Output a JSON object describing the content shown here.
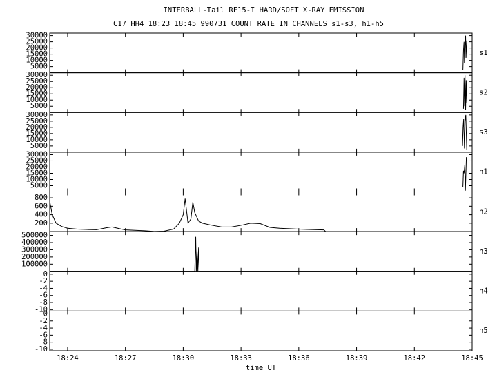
{
  "title": "INTERBALL-Tail RF15-I HARD/SOFT X-RAY EMISSION",
  "subtitle": "C17 HH4 18:23 18:45 990731  COUNT RATE IN CHANNELS s1-s3, h1-h5",
  "x_label": "time UT",
  "xlim": [
    23.07,
    45
  ],
  "xticks": [
    {
      "value": 24,
      "label": "18:24"
    },
    {
      "value": 27,
      "label": "18:27"
    },
    {
      "value": 30,
      "label": "18:30"
    },
    {
      "value": 33,
      "label": "18:33"
    },
    {
      "value": 36,
      "label": "18:36"
    },
    {
      "value": 39,
      "label": "18:39"
    },
    {
      "value": 42,
      "label": "18:42"
    },
    {
      "value": 45,
      "label": "18:45"
    }
  ],
  "chart_data": [
    {
      "type": "line",
      "label": "s1",
      "color": "#000000",
      "ylim": [
        0,
        32000
      ],
      "yticks": [
        5000,
        10000,
        15000,
        20000,
        25000,
        30000
      ],
      "x": [
        44.52,
        44.55,
        44.58,
        44.6,
        44.63,
        44.66,
        44.68,
        44.72
      ],
      "values": [
        2000,
        18000,
        25000,
        8000,
        22000,
        30000,
        12000,
        26000
      ]
    },
    {
      "type": "line",
      "label": "s2",
      "color": "#000000",
      "ylim": [
        0,
        32000
      ],
      "yticks": [
        5000,
        10000,
        15000,
        20000,
        25000,
        30000
      ],
      "x": [
        44.55,
        44.58,
        44.61,
        44.63,
        44.66,
        44.69,
        44.72
      ],
      "values": [
        3000,
        28000,
        5000,
        30000,
        2000,
        26000,
        8000
      ]
    },
    {
      "type": "line",
      "label": "s3",
      "color": "#000000",
      "ylim": [
        0,
        32000
      ],
      "yticks": [
        5000,
        10000,
        15000,
        20000,
        25000,
        30000
      ],
      "x": [
        44.5,
        44.53,
        44.56,
        44.6,
        44.63,
        44.67,
        44.72
      ],
      "values": [
        5000,
        20000,
        27000,
        3000,
        25000,
        30000,
        2000
      ]
    },
    {
      "type": "line",
      "label": "h1",
      "color": "#000000",
      "ylim": [
        0,
        32000
      ],
      "yticks": [
        5000,
        10000,
        15000,
        20000,
        25000,
        30000
      ],
      "x": [
        44.52,
        44.55,
        44.58,
        44.62,
        44.65,
        44.7
      ],
      "values": [
        4000,
        17000,
        15000,
        22000,
        1000,
        28000
      ]
    },
    {
      "type": "line",
      "label": "h2",
      "color": "#000000",
      "ylim": [
        0,
        940
      ],
      "yticks": [
        200,
        400,
        600,
        800
      ],
      "x": [
        23.07,
        23.2,
        23.4,
        23.7,
        24.0,
        24.5,
        25.0,
        25.5,
        26.0,
        26.3,
        26.7,
        27.0,
        27.5,
        28.0,
        28.5,
        29.0,
        29.5,
        29.8,
        30.0,
        30.1,
        30.25,
        30.4,
        30.5,
        30.6,
        30.8,
        31.0,
        31.5,
        32.0,
        32.5,
        33.0,
        33.5,
        34.0,
        34.5,
        35.0,
        35.5,
        36.0,
        36.5,
        37.3,
        37.4,
        45
      ],
      "values": [
        720,
        400,
        200,
        120,
        80,
        60,
        50,
        45,
        90,
        110,
        70,
        40,
        30,
        20,
        5,
        10,
        60,
        200,
        400,
        780,
        200,
        300,
        700,
        450,
        250,
        200,
        150,
        110,
        110,
        150,
        200,
        190,
        100,
        80,
        70,
        60,
        50,
        40,
        0,
        0
      ]
    },
    {
      "type": "line",
      "label": "h3",
      "color": "#000000",
      "ylim": [
        0,
        552000
      ],
      "yticks": [
        100000,
        200000,
        300000,
        400000,
        500000
      ],
      "x": [
        23.07,
        30.6,
        30.65,
        30.68,
        30.72,
        30.75,
        30.8,
        30.82,
        45
      ],
      "values": [
        0,
        0,
        480000,
        0,
        300000,
        0,
        330000,
        0,
        0
      ]
    },
    {
      "type": "line",
      "label": "h4",
      "color": "#000000",
      "ylim": [
        -10.4,
        0.8
      ],
      "yticks": [
        -10,
        -8,
        -6,
        -4,
        -2,
        0
      ]
    },
    {
      "type": "line",
      "label": "h5",
      "color": "#000000",
      "ylim": [
        -10.4,
        0.8
      ],
      "yticks": [
        -10,
        -8,
        -6,
        -4,
        -2,
        0
      ]
    }
  ]
}
